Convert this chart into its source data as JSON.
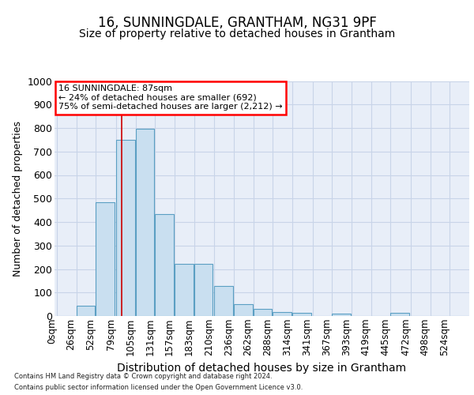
{
  "title": "16, SUNNINGDALE, GRANTHAM, NG31 9PF",
  "subtitle": "Size of property relative to detached houses in Grantham",
  "xlabel": "Distribution of detached houses by size in Grantham",
  "ylabel": "Number of detached properties",
  "footnote1": "Contains HM Land Registry data © Crown copyright and database right 2024.",
  "footnote2": "Contains public sector information licensed under the Open Government Licence v3.0.",
  "annotation_line1": "16 SUNNINGDALE: 87sqm",
  "annotation_line2": "← 24% of detached houses are smaller (692)",
  "annotation_line3": "75% of semi-detached houses are larger (2,212) →",
  "bar_color": "#c9dff0",
  "bar_edge_color": "#5b9fc3",
  "red_line_x": 87,
  "ylim": [
    0,
    1000
  ],
  "xlim": [
    -3,
    550
  ],
  "categories": [
    0,
    26,
    52,
    79,
    105,
    131,
    157,
    183,
    210,
    236,
    262,
    288,
    314,
    341,
    367,
    393,
    419,
    445,
    472,
    498,
    524
  ],
  "values": [
    0,
    45,
    485,
    750,
    795,
    435,
    222,
    222,
    128,
    50,
    30,
    18,
    12,
    0,
    10,
    0,
    0,
    12,
    0,
    0,
    0
  ],
  "grid_color": "#c8d4e8",
  "bg_color": "#e8eef8",
  "title_fontsize": 12,
  "subtitle_fontsize": 10,
  "tick_fontsize": 8.5,
  "ylabel_fontsize": 9,
  "xlabel_fontsize": 10
}
